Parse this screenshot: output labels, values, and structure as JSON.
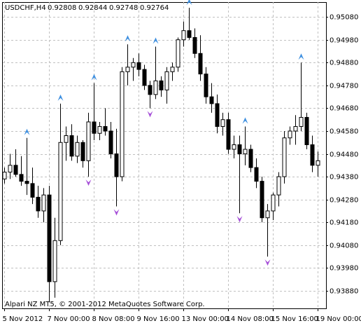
{
  "chart_data": {
    "type": "candlestick",
    "symbol": "USDCHF,H4",
    "ohlc": [
      0.92808,
      0.92844,
      0.92748,
      0.92764
    ],
    "footer": "Alpari NZ MT5, © 2001-2012 MetaQuotes Software Corp.",
    "categories": [
      "5 Nov 2012",
      null,
      null,
      null,
      null,
      null,
      null,
      null,
      "7 Nov 00:00",
      null,
      null,
      null,
      null,
      null,
      null,
      null,
      "8 Nov 08:00",
      null,
      null,
      null,
      null,
      null,
      null,
      null,
      "9 Nov 16:00",
      null,
      null,
      null,
      null,
      null,
      null,
      null,
      "13 Nov 00:00",
      null,
      null,
      null,
      null,
      null,
      null,
      null,
      "14 Nov 08:00",
      null,
      null,
      null,
      null,
      null,
      null,
      null,
      "15 Nov 16:00",
      null,
      null,
      null,
      null,
      null,
      null,
      null,
      "19 Nov 00:00"
    ],
    "open": [
      0.9437,
      0.944,
      0.9443,
      0.9439,
      0.9436,
      0.9435,
      0.9429,
      0.9423,
      0.943,
      0.9392,
      0.941,
      0.9453,
      0.9456,
      0.9447,
      0.9453,
      0.9445,
      0.9462,
      0.9457,
      0.946,
      0.9458,
      0.9448,
      0.9438,
      0.9484,
      0.9486,
      0.9488,
      0.9485,
      0.9478,
      0.9474,
      0.948,
      0.9476,
      0.9484,
      0.9486,
      0.9498,
      0.9502,
      0.9499,
      0.9492,
      0.9483,
      0.9473,
      0.947,
      0.946,
      0.9463,
      0.945,
      0.9452,
      0.9448,
      0.945,
      0.9442,
      0.9436,
      0.942,
      0.9423,
      0.943,
      0.9438,
      0.9455,
      0.9458,
      0.946,
      0.9464,
      0.9452,
      0.9443
    ],
    "high": [
      0.9442,
      0.9448,
      0.945,
      0.9447,
      0.9455,
      0.9442,
      0.9434,
      0.9433,
      0.9434,
      0.942,
      0.947,
      0.946,
      0.9461,
      0.9456,
      0.9454,
      0.9466,
      0.9479,
      0.9462,
      0.9468,
      0.9462,
      0.9459,
      0.9486,
      0.9496,
      0.949,
      0.9492,
      0.9487,
      0.948,
      0.9495,
      0.9482,
      0.9486,
      0.9488,
      0.9499,
      0.9506,
      0.9512,
      0.9503,
      0.95,
      0.9486,
      0.9479,
      0.9474,
      0.9466,
      0.9466,
      0.9456,
      0.9456,
      0.946,
      0.9452,
      0.9446,
      0.9438,
      0.9426,
      0.9431,
      0.944,
      0.9458,
      0.946,
      0.9465,
      0.9488,
      0.9466,
      0.9456,
      0.9449
    ],
    "low": [
      0.9435,
      0.9437,
      0.9438,
      0.9434,
      0.943,
      0.9426,
      0.942,
      0.9418,
      0.9383,
      0.9385,
      0.9408,
      0.9445,
      0.9445,
      0.9444,
      0.9442,
      0.9438,
      0.9454,
      0.9454,
      0.9456,
      0.9446,
      0.9425,
      0.9436,
      0.9478,
      0.948,
      0.9482,
      0.9476,
      0.9468,
      0.9472,
      0.9473,
      0.947,
      0.948,
      0.9484,
      0.9495,
      0.9498,
      0.949,
      0.948,
      0.947,
      0.9466,
      0.9457,
      0.9456,
      0.9448,
      0.9446,
      0.9422,
      0.9443,
      0.944,
      0.9433,
      0.9418,
      0.9403,
      0.9419,
      0.9425,
      0.9435,
      0.9452,
      0.9452,
      0.9458,
      0.945,
      0.944,
      0.9438
    ],
    "close": [
      0.944,
      0.9443,
      0.9439,
      0.9436,
      0.9435,
      0.9429,
      0.9423,
      0.943,
      0.9392,
      0.941,
      0.9453,
      0.9456,
      0.9447,
      0.9453,
      0.9445,
      0.9462,
      0.9457,
      0.946,
      0.9458,
      0.9448,
      0.9438,
      0.9484,
      0.9486,
      0.9488,
      0.9485,
      0.9478,
      0.9474,
      0.948,
      0.9476,
      0.9484,
      0.9486,
      0.9498,
      0.9502,
      0.9499,
      0.9492,
      0.9483,
      0.9473,
      0.947,
      0.946,
      0.9463,
      0.945,
      0.9452,
      0.9448,
      0.945,
      0.9442,
      0.9436,
      0.942,
      0.9423,
      0.943,
      0.9438,
      0.9455,
      0.9458,
      0.946,
      0.9464,
      0.9452,
      0.9443,
      0.9445
    ],
    "fractals_up": [
      null,
      null,
      null,
      null,
      0.9455,
      null,
      null,
      null,
      null,
      null,
      0.947,
      null,
      null,
      null,
      null,
      null,
      0.9479,
      null,
      null,
      null,
      null,
      null,
      0.9496,
      null,
      null,
      null,
      null,
      0.9495,
      null,
      null,
      null,
      null,
      null,
      0.9512,
      null,
      null,
      null,
      null,
      null,
      null,
      null,
      null,
      null,
      0.946,
      null,
      null,
      null,
      null,
      null,
      null,
      null,
      null,
      null,
      0.9488,
      null,
      null,
      null
    ],
    "fractals_down": [
      null,
      null,
      null,
      null,
      null,
      null,
      null,
      null,
      null,
      null,
      null,
      null,
      null,
      null,
      null,
      0.9438,
      null,
      null,
      null,
      null,
      0.9425,
      null,
      null,
      null,
      null,
      null,
      0.9468,
      null,
      null,
      null,
      null,
      null,
      null,
      null,
      null,
      null,
      null,
      null,
      null,
      null,
      null,
      null,
      0.9422,
      null,
      null,
      null,
      null,
      0.9403,
      null,
      null,
      null,
      null,
      null,
      null,
      null,
      null,
      null
    ],
    "up_color": "#3d8fe0",
    "down_color": "#a64fd8",
    "bear_color": "#000000",
    "bull_color": "#ffffff",
    "ylim": [
      0.93803,
      0.95145
    ],
    "yticks": [
      {
        "value": 0.9388,
        "label": "0.93880"
      },
      {
        "value": 0.9398,
        "label": "0.93980"
      },
      {
        "value": 0.9408,
        "label": "0.94080"
      },
      {
        "value": 0.9418,
        "label": "0.94180"
      },
      {
        "value": 0.9428,
        "label": "0.94280"
      },
      {
        "value": 0.9438,
        "label": "0.94380"
      },
      {
        "value": 0.9448,
        "label": "0.94480"
      },
      {
        "value": 0.9458,
        "label": "0.94580"
      },
      {
        "value": 0.9468,
        "label": "0.94680"
      },
      {
        "value": 0.9478,
        "label": "0.94780"
      },
      {
        "value": 0.9488,
        "label": "0.94880"
      },
      {
        "value": 0.9498,
        "label": "0.94980"
      },
      {
        "value": 0.9508,
        "label": "0.95080"
      }
    ],
    "grid": true
  }
}
